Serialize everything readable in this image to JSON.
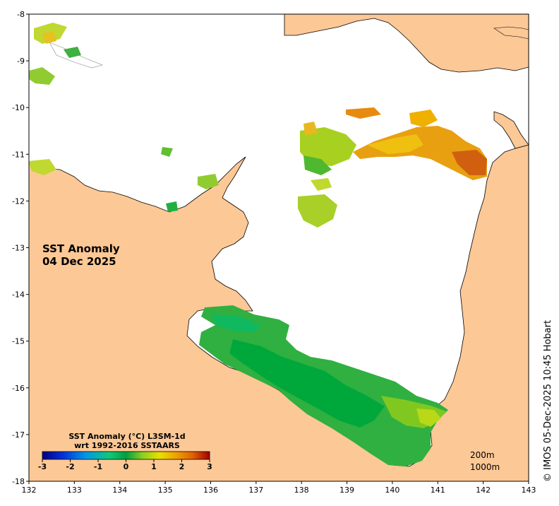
{
  "title": {
    "line1": "SST Anomaly",
    "line2": "04 Dec 2025"
  },
  "colorbar": {
    "title_line1": "SST Anomaly (°C) L3SM-1d",
    "title_line2": "wrt 1992-2016 SSTAARS",
    "ticks": [
      "-3",
      "-2",
      "-1",
      "0",
      "1",
      "2",
      "3"
    ],
    "range": [
      -3,
      3
    ],
    "colors": [
      "#00007f",
      "#0030d8",
      "#0098e8",
      "#10c878",
      "#00a040",
      "#8cd020",
      "#e8e000",
      "#f0a000",
      "#e06000",
      "#a00000"
    ]
  },
  "axes": {
    "x_ticks": [
      "132",
      "133",
      "134",
      "135",
      "136",
      "137",
      "138",
      "139",
      "140",
      "141",
      "142",
      "143"
    ],
    "y_ticks": [
      "-8",
      "-9",
      "-10",
      "-11",
      "-12",
      "-13",
      "-14",
      "-15",
      "-16",
      "-17",
      "-18"
    ],
    "xlim": [
      132,
      143
    ],
    "ylim": [
      -18,
      -8
    ]
  },
  "contour_labels": [
    "200m",
    "1000m"
  ],
  "credit": "© IMOS 05-Dec-2025 10:45 Hobart",
  "colors": {
    "land": "#fcc896",
    "ocean": "#ffffff",
    "coast": "#000000"
  }
}
